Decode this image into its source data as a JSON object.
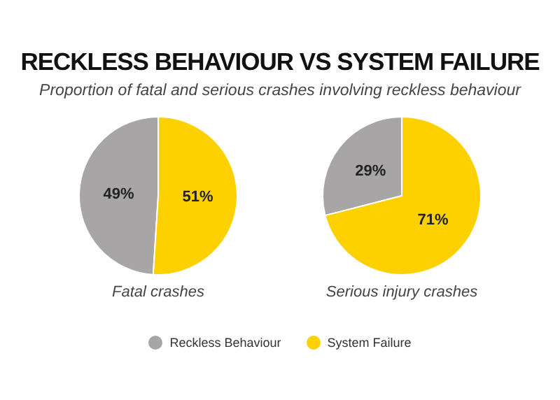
{
  "chart_data": [
    {
      "type": "pie",
      "title": "RECKLESS BEHAVIOUR VS SYSTEM FAILURE",
      "subtitle": "Proportion of fatal and serious crashes involving reckless behaviour",
      "xlabel": "Fatal crashes",
      "categories": [
        "Reckless Behaviour",
        "System Failure"
      ],
      "values": [
        49,
        51
      ],
      "colors": [
        "#a7a5a6",
        "#fdd000"
      ],
      "value_labels": [
        "49%",
        "51%"
      ],
      "legend": "bottom"
    },
    {
      "type": "pie",
      "xlabel": "Serious injury crashes",
      "categories": [
        null,
        null
      ],
      "values": [
        29,
        71
      ],
      "colors": [
        "#a7a5a6",
        "#fdd000"
      ],
      "value_labels": [
        "29%",
        "71%"
      ]
    }
  ]
}
